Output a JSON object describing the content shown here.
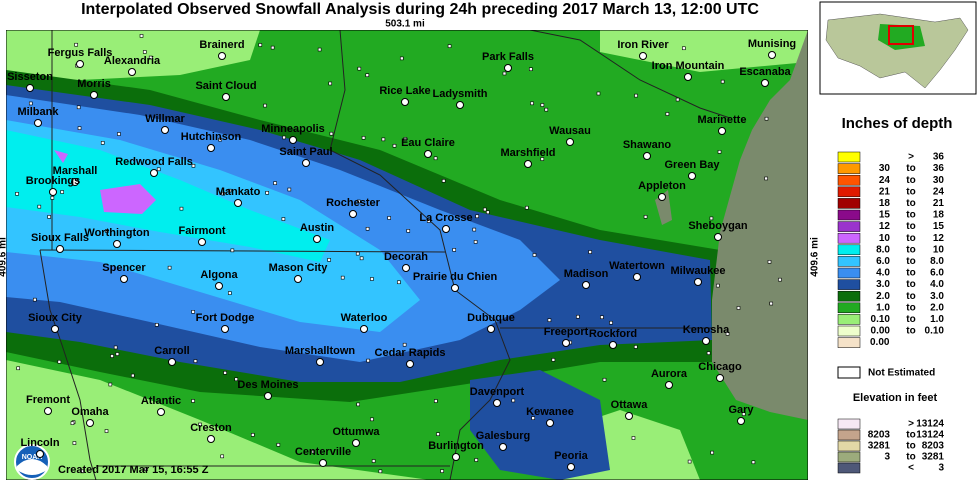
{
  "title": "Interpolated Observed Snowfall Analysis during 24h preceding 2017 March 13, 12:00 UTC",
  "scale_top": "503.1 mi",
  "scale_left": "409.6 mi",
  "scale_right": "409.6 mi",
  "created": "Created 2017 Mar 15, 16:55 Z",
  "logo": "NOAA",
  "cities": [
    "Fergus Falls",
    "Brainerd",
    "Park Falls",
    "Iron River",
    "Munising",
    "Alexandria",
    "Iron Mountain",
    "Sisseton",
    "Morris",
    "Saint Cloud",
    "Escanaba",
    "Rice Lake",
    "Ladysmith",
    "Milbank",
    "Willmar",
    "Marinette",
    "Hutchinson",
    "Minneapolis",
    "Wausau",
    "Saint Paul",
    "Eau Claire",
    "Shawano",
    "Marshall",
    "Redwood Falls",
    "Marshfield",
    "Green Bay",
    "Brookings",
    "Appleton",
    "Mankato",
    "Rochester",
    "Sheboygan",
    "La Crosse",
    "Sioux Falls",
    "Worthington",
    "Fairmont",
    "Austin",
    "Decorah",
    "Spencer",
    "Algona",
    "Mason City",
    "Prairie du Chien",
    "Madison",
    "Watertown",
    "Milwaukee",
    "Sioux City",
    "Fort Dodge",
    "Waterloo",
    "Dubuque",
    "Freeport",
    "Rockford",
    "Kenosha",
    "Carroll",
    "Marshalltown",
    "Cedar Rapids",
    "Chicago",
    "Aurora",
    "Des Moines",
    "Davenport",
    "Fremont",
    "Atlantic",
    "Omaha",
    "Ottawa",
    "Gary",
    "Kewanee",
    "Creston",
    "Ottumwa",
    "Lincoln",
    "Galesburg",
    "Burlington",
    "Centerville",
    "Peoria"
  ],
  "legend": {
    "title": "Inches of depth",
    "rows": [
      {
        "sep": ">",
        "to": "36",
        "color": "#ffff00"
      },
      {
        "from": "30",
        "sep": "to",
        "to": "36",
        "color": "#ff9900"
      },
      {
        "from": "24",
        "sep": "to",
        "to": "30",
        "color": "#ff5500"
      },
      {
        "from": "21",
        "sep": "to",
        "to": "24",
        "color": "#e01a00"
      },
      {
        "from": "18",
        "sep": "to",
        "to": "21",
        "color": "#a00000"
      },
      {
        "from": "15",
        "sep": "to",
        "to": "18",
        "color": "#8a0a8a"
      },
      {
        "from": "12",
        "sep": "to",
        "to": "15",
        "color": "#9a33cc"
      },
      {
        "from": "10",
        "sep": "to",
        "to": "12",
        "color": "#cc66ff"
      },
      {
        "from": "8.0",
        "sep": "to",
        "to": "10",
        "color": "#00eeee"
      },
      {
        "from": "6.0",
        "sep": "to",
        "to": "8.0",
        "color": "#33c4ff"
      },
      {
        "from": "4.0",
        "sep": "to",
        "to": "6.0",
        "color": "#3a8ef0"
      },
      {
        "from": "3.0",
        "sep": "to",
        "to": "4.0",
        "color": "#1f4fa0"
      },
      {
        "from": "2.0",
        "sep": "to",
        "to": "3.0",
        "color": "#0b6e0b"
      },
      {
        "from": "1.0",
        "sep": "to",
        "to": "2.0",
        "color": "#22aa22"
      },
      {
        "from": "0.10",
        "sep": "to",
        "to": "1.0",
        "color": "#99ee77"
      },
      {
        "from": "0.00",
        "sep": "to",
        "to": "0.10",
        "color": "#eeffcc"
      },
      {
        "from": "0.00",
        "color": "#f5e2c8"
      }
    ],
    "not_estimated": "Not Estimated"
  },
  "elevation": {
    "title": "Elevation in feet",
    "rows": [
      {
        "sep": ">",
        "to": "13124",
        "color": "#f6e8f4"
      },
      {
        "from": "8203",
        "sep": "to",
        "to": "13124",
        "color": "#c4a48c"
      },
      {
        "from": "3281",
        "sep": "to",
        "to": "8203",
        "color": "#e2d8a6"
      },
      {
        "from": "3",
        "sep": "to",
        "to": "3281",
        "color": "#9cab7c"
      },
      {
        "sep": "<",
        "to": "3",
        "color": "#4e5878"
      }
    ]
  }
}
